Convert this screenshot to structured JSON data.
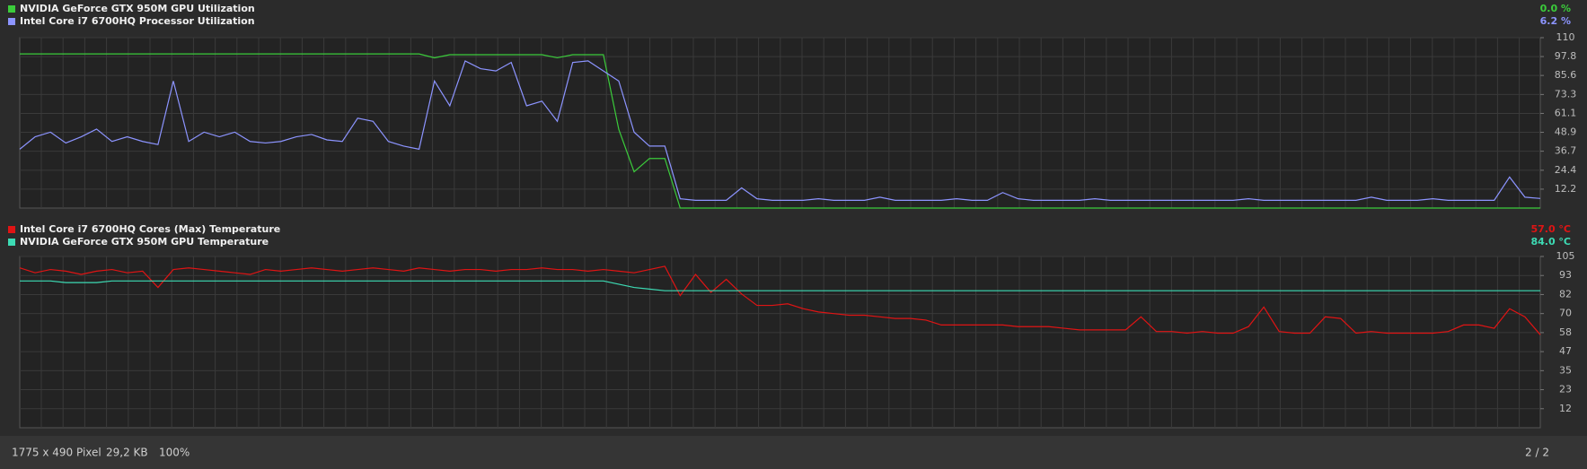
{
  "chart_data": [
    {
      "type": "line",
      "ylim": [
        0,
        110
      ],
      "yticks": [
        110,
        97.8,
        85.6,
        73.3,
        61.1,
        48.9,
        36.7,
        24.4,
        12.2
      ],
      "grid": true,
      "series": [
        {
          "name": "NVIDIA GeForce GTX 950M GPU Utilization",
          "color": "#3bcc3b",
          "reading": "0.0 %",
          "values": [
            99.5,
            99.5,
            99.5,
            99.5,
            99.5,
            99.5,
            99.5,
            99.5,
            99.5,
            99.5,
            99.5,
            99.5,
            99.5,
            99.5,
            99.5,
            99.5,
            99.5,
            99.5,
            99.5,
            99.5,
            99.5,
            99.5,
            99.5,
            99.5,
            99.5,
            99.5,
            99.5,
            97,
            99,
            99,
            99,
            99,
            99,
            99,
            99,
            97,
            99,
            99,
            99,
            50.8,
            23.4,
            32,
            32,
            0,
            0,
            0,
            0,
            0,
            0,
            0,
            0,
            0,
            0,
            0,
            0,
            0,
            0,
            0,
            0,
            0,
            0,
            0,
            0,
            0,
            0,
            0,
            0,
            0,
            0,
            0,
            0,
            0,
            0,
            0,
            0,
            0,
            0,
            0,
            0,
            0,
            0,
            0,
            0,
            0,
            0,
            0,
            0,
            0,
            0,
            0,
            0,
            0,
            0,
            0,
            0,
            0,
            0,
            0,
            0,
            0
          ]
        },
        {
          "name": "Intel Core i7 6700HQ Processor Utilization",
          "color": "#8c94ff",
          "reading": "6.2 %",
          "values": [
            38,
            46,
            49,
            42,
            46,
            51,
            43,
            46,
            43,
            41,
            82,
            43,
            49,
            46,
            49,
            43,
            42,
            43,
            46,
            47.5,
            44,
            43,
            58,
            56,
            43,
            40,
            38,
            82,
            66,
            95,
            90,
            88.5,
            94,
            66,
            69,
            56,
            94,
            95,
            88.5,
            82,
            49,
            40,
            40,
            6,
            5,
            5,
            5,
            13,
            6,
            5,
            5,
            5,
            6,
            5,
            5,
            5,
            7,
            5,
            5,
            5,
            5,
            6,
            5,
            5,
            10,
            6,
            5,
            5,
            5,
            5,
            6,
            5,
            5,
            5,
            5,
            5,
            5,
            5,
            5,
            5,
            6,
            5,
            5,
            5,
            5,
            5,
            5,
            5,
            7,
            5,
            5,
            5,
            6,
            5,
            5,
            5,
            5,
            20,
            7,
            6.2
          ]
        }
      ]
    },
    {
      "type": "line",
      "ylim": [
        0,
        105
      ],
      "yticks": [
        105,
        {
          "value": 93.33,
          "label": "93"
        },
        {
          "value": 81.67,
          "label": "82"
        },
        70,
        {
          "value": 58.33,
          "label": "58"
        },
        {
          "value": 46.67,
          "label": "47"
        },
        35,
        {
          "value": 23.33,
          "label": "23"
        },
        {
          "value": 11.67,
          "label": "12"
        }
      ],
      "grid": true,
      "series": [
        {
          "name": "Intel Core i7 6700HQ Cores (Max) Temperature",
          "color": "#e01414",
          "reading": "57.0 °C",
          "values": [
            98,
            95,
            97,
            96,
            94,
            96,
            97,
            95,
            96,
            86,
            97,
            98,
            97,
            96,
            95,
            94,
            97,
            96,
            97,
            98,
            97,
            96,
            97,
            98,
            97,
            96,
            98,
            97,
            96,
            97,
            97,
            96,
            97,
            97,
            98,
            97,
            97,
            96,
            97,
            96,
            95,
            97,
            99,
            81,
            94,
            83,
            91,
            82,
            75,
            75,
            76,
            73,
            71,
            70,
            69,
            69,
            68,
            67,
            67,
            66,
            63,
            63,
            63,
            63,
            63,
            62,
            62,
            62,
            61,
            60,
            60,
            60,
            60,
            68,
            59,
            59,
            58,
            59,
            58,
            58,
            62,
            74,
            59,
            58,
            58,
            68,
            67,
            58,
            59,
            58,
            58,
            58,
            58,
            59,
            63,
            63,
            61,
            73,
            68,
            57
          ]
        },
        {
          "name": "NVIDIA GeForce GTX 950M GPU Temperature",
          "color": "#3ddbb4",
          "reading": "84.0 °C",
          "values": [
            90,
            90,
            90,
            89,
            89,
            89,
            90,
            90,
            90,
            90,
            90,
            90,
            90,
            90,
            90,
            90,
            90,
            90,
            90,
            90,
            90,
            90,
            90,
            90,
            90,
            90,
            90,
            90,
            90,
            90,
            90,
            90,
            90,
            90,
            90,
            90,
            90,
            90,
            90,
            88,
            86,
            85,
            84,
            84,
            84,
            84,
            84,
            84,
            84,
            84,
            84,
            84,
            84,
            84,
            84,
            84,
            84,
            84,
            84,
            84,
            84,
            84,
            84,
            84,
            84,
            84,
            84,
            84,
            84,
            84,
            84,
            84,
            84,
            84,
            84,
            84,
            84,
            84,
            84,
            84,
            84,
            84,
            84,
            84,
            84,
            84,
            84,
            84,
            84,
            84,
            84,
            84,
            84,
            84,
            84,
            84,
            84,
            84,
            84,
            84
          ]
        }
      ]
    }
  ],
  "status_bar": {
    "dimensions": "1775 x 490 Pixel",
    "size": "29,2 KB",
    "zoom": "100%",
    "page": "2 / 2"
  }
}
